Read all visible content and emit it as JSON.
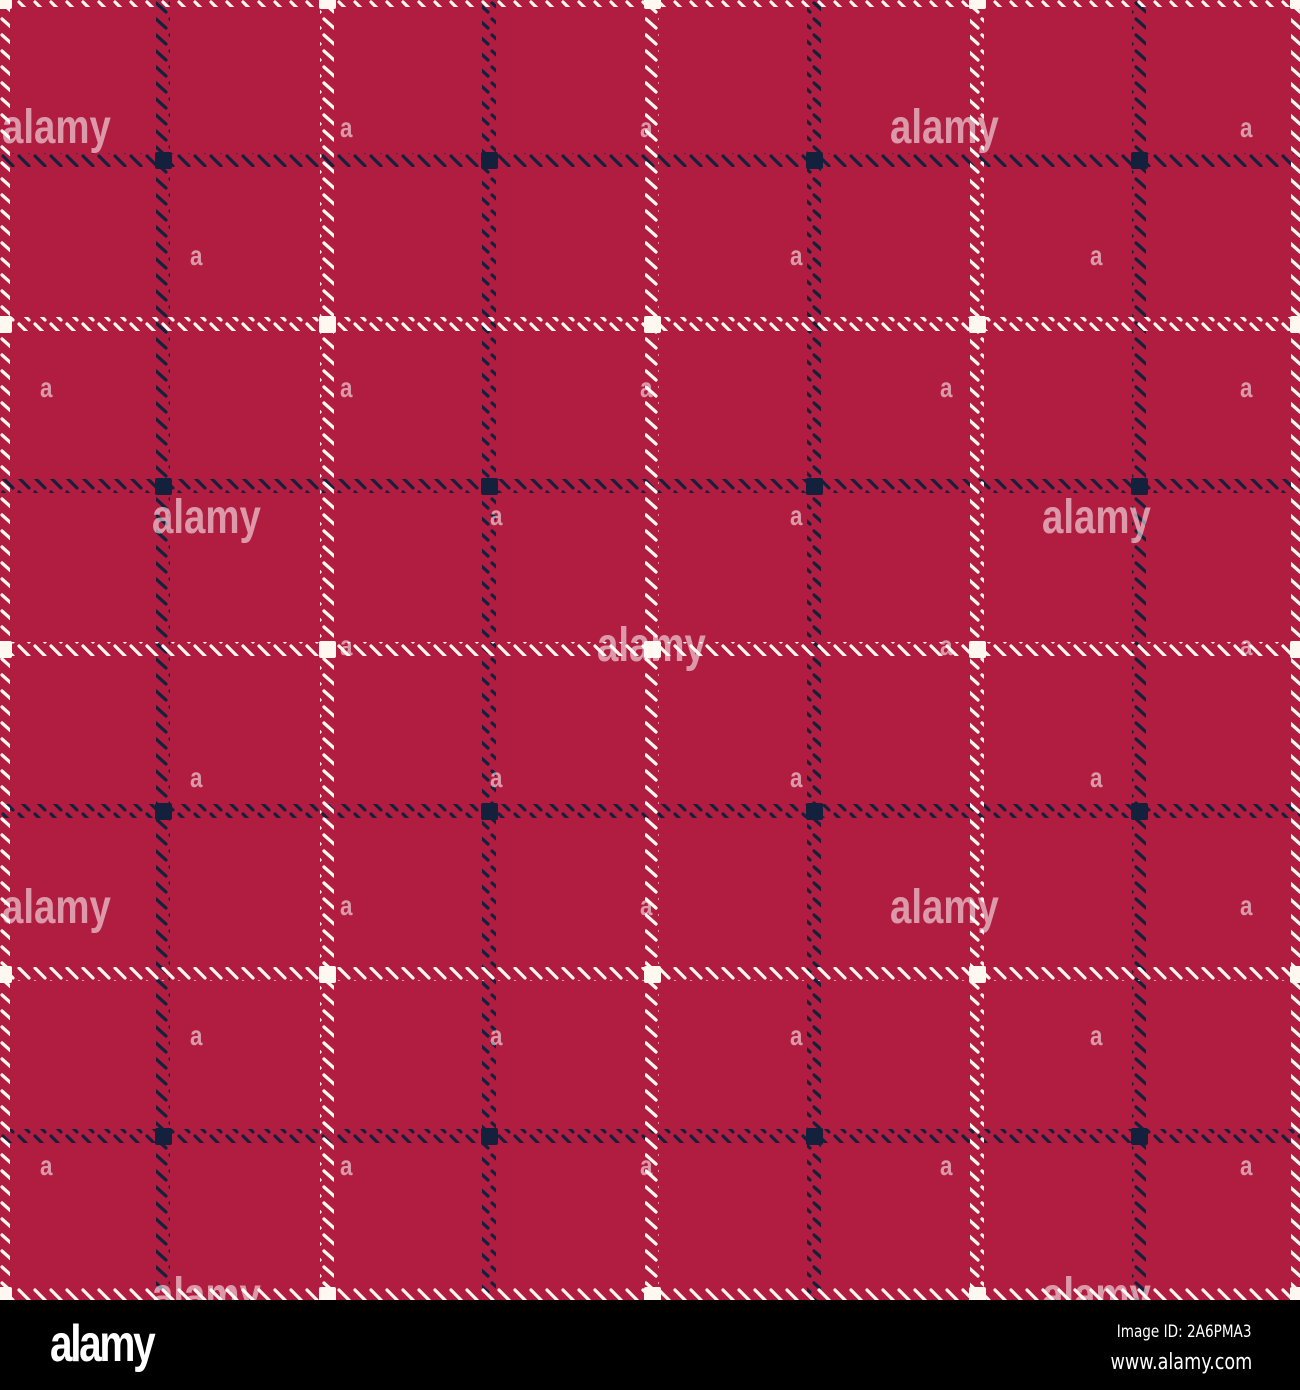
{
  "pattern": {
    "colors": {
      "background": "#B01D40",
      "white_stripe": "#FFF8F0",
      "navy_stripe": "#14213D"
    },
    "period_px_note": "",
    "white_lines": [
      3,
      327,
      652,
      977,
      1298
    ],
    "navy_lines": [
      163,
      489,
      814,
      1139
    ]
  },
  "watermark": {
    "text": "alamy",
    "mark": "a"
  },
  "footer": {
    "logo": "alamy",
    "image_id": "Image ID: 2A6PMA3",
    "website": "www.alamy.com"
  }
}
